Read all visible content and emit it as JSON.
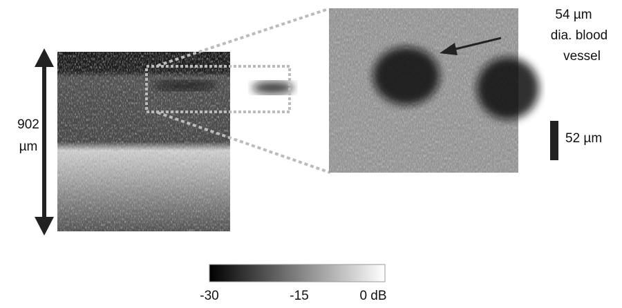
{
  "left_image": {
    "scale_label": [
      "902",
      "µm"
    ]
  },
  "inset": {
    "annotation": [
      "54 µm",
      "dia. blood",
      "vessel"
    ],
    "scale_bar_label": "52 µm"
  },
  "colorbar": {
    "tick_labels": [
      "-30",
      "-15",
      "0 dB"
    ]
  }
}
